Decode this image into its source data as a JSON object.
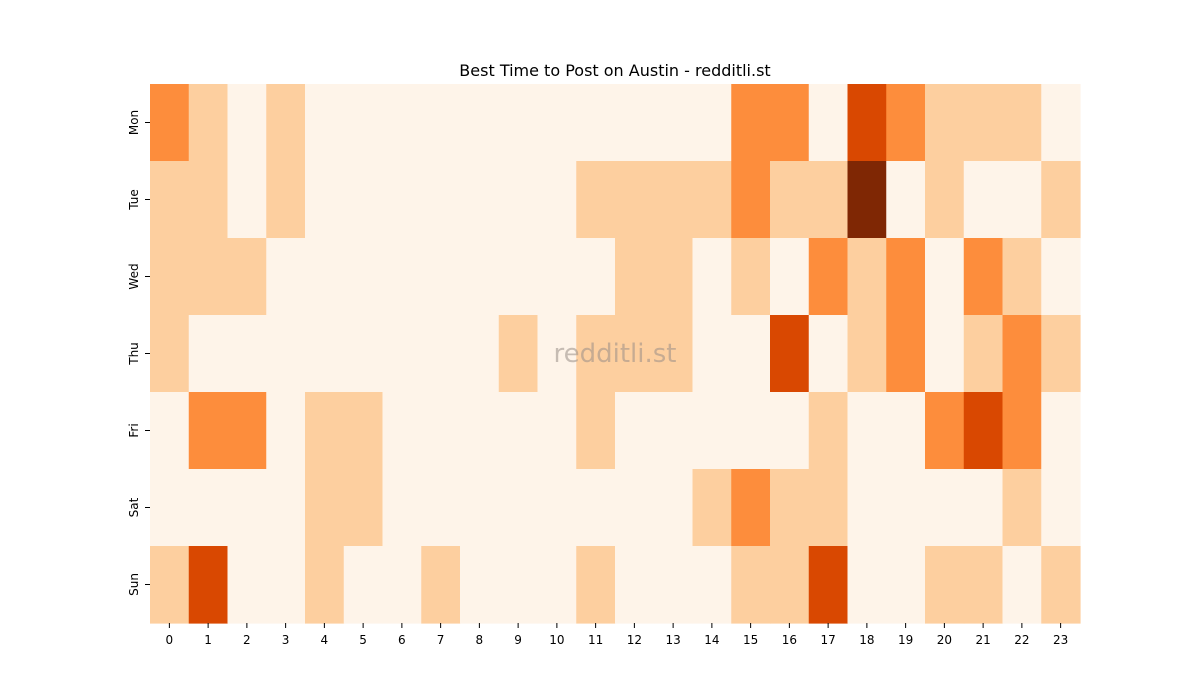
{
  "chart_data": {
    "type": "heatmap",
    "title": "Best Time to Post on Austin - redditli.st",
    "xlabel": "",
    "ylabel": "",
    "x": [
      "0",
      "1",
      "2",
      "3",
      "4",
      "5",
      "6",
      "7",
      "8",
      "9",
      "10",
      "11",
      "12",
      "13",
      "14",
      "15",
      "16",
      "17",
      "18",
      "19",
      "20",
      "21",
      "22",
      "23"
    ],
    "y": [
      "Mon",
      "Tue",
      "Wed",
      "Thu",
      "Fri",
      "Sat",
      "Sun"
    ],
    "values": [
      [
        2,
        1,
        0,
        1,
        0,
        0,
        0,
        0,
        0,
        0,
        0,
        0,
        0,
        0,
        0,
        2,
        2,
        0,
        3,
        2,
        1,
        1,
        1,
        0
      ],
      [
        1,
        1,
        0,
        1,
        0,
        0,
        0,
        0,
        0,
        0,
        0,
        1,
        1,
        1,
        1,
        2,
        1,
        1,
        4,
        0,
        1,
        0,
        0,
        1
      ],
      [
        1,
        1,
        1,
        0,
        0,
        0,
        0,
        0,
        0,
        0,
        0,
        0,
        1,
        1,
        0,
        1,
        0,
        2,
        1,
        2,
        0,
        2,
        1,
        0
      ],
      [
        1,
        0,
        0,
        0,
        0,
        0,
        0,
        0,
        0,
        1,
        0,
        1,
        1,
        1,
        0,
        0,
        3,
        0,
        1,
        2,
        0,
        1,
        2,
        1
      ],
      [
        0,
        2,
        2,
        0,
        1,
        1,
        0,
        0,
        0,
        0,
        0,
        1,
        0,
        0,
        0,
        0,
        0,
        1,
        0,
        0,
        2,
        3,
        2,
        0
      ],
      [
        0,
        0,
        0,
        0,
        1,
        1,
        0,
        0,
        0,
        0,
        0,
        0,
        0,
        0,
        1,
        2,
        1,
        1,
        0,
        0,
        0,
        0,
        1,
        0
      ],
      [
        1,
        3,
        0,
        0,
        1,
        0,
        0,
        1,
        0,
        0,
        0,
        1,
        0,
        0,
        0,
        1,
        1,
        3,
        0,
        0,
        1,
        1,
        0,
        1
      ]
    ],
    "colorscale": [
      "#fef4e9",
      "#fdcf9f",
      "#fd8d3c",
      "#d94801",
      "#7f2704"
    ],
    "watermark": "redditli.st"
  }
}
